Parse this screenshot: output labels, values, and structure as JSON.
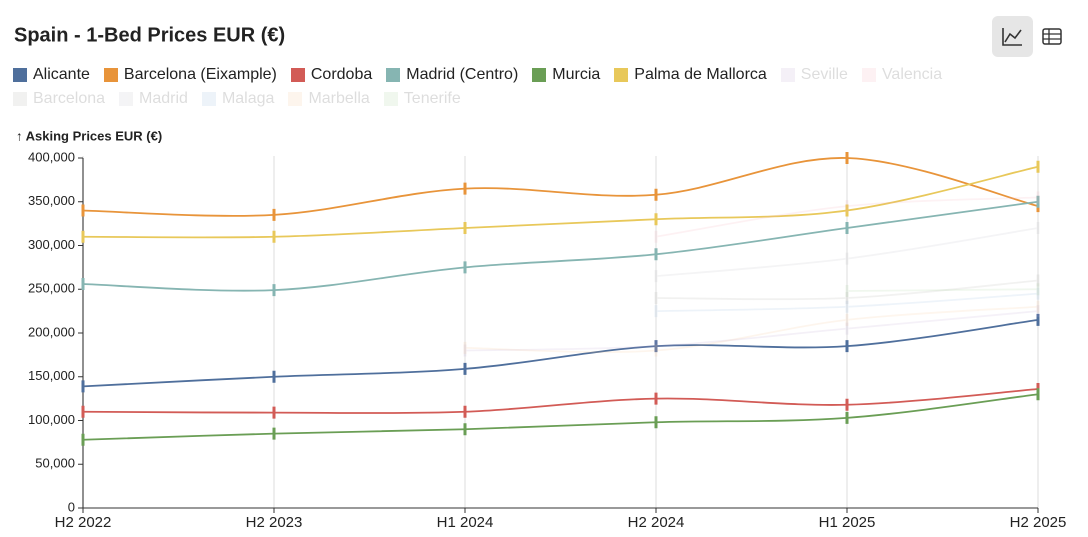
{
  "chart_data": {
    "type": "line",
    "title": "Spain - 1-Bed Prices EUR (€)",
    "y_label": "↑ Asking Prices EUR (€)",
    "categories": [
      "H2 2022",
      "H2 2023",
      "H1 2024",
      "H2 2024",
      "H1 2025",
      "H2 2025"
    ],
    "ylim": [
      0,
      400000
    ],
    "yticks": [
      0,
      {
        "value": 50000,
        "label": "50,000"
      },
      {
        "value": 100000,
        "label": "100,000"
      },
      {
        "value": 150000,
        "label": "150,000"
      },
      {
        "value": 200000,
        "label": "200,000"
      },
      {
        "value": 250000,
        "label": "250,000"
      },
      {
        "value": 300000,
        "label": "300,000"
      },
      {
        "value": 350000,
        "label": "350,000"
      },
      {
        "value": 400000,
        "label": "400,000"
      }
    ],
    "grid": true,
    "series": [
      {
        "name": "Alicante",
        "color": "#4f6f9c",
        "values": [
          139000,
          150000,
          159000,
          185000,
          185000,
          215000
        ]
      },
      {
        "name": "Barcelona (Eixample)",
        "color": "#e8943a",
        "values": [
          340000,
          335000,
          365000,
          358000,
          400000,
          345000
        ]
      },
      {
        "name": "Cordoba",
        "color": "#d25b56",
        "values": [
          110000,
          109000,
          110000,
          125000,
          118000,
          136000
        ]
      },
      {
        "name": "Madrid (Centro)",
        "color": "#86b5b2",
        "values": [
          256000,
          249000,
          275000,
          290000,
          320000,
          350000
        ]
      },
      {
        "name": "Murcia",
        "color": "#6a9e55",
        "values": [
          78000,
          85000,
          90000,
          98000,
          103000,
          130000
        ]
      },
      {
        "name": "Palma de Mallorca",
        "color": "#e8c85a",
        "values": [
          310000,
          310000,
          320000,
          330000,
          340000,
          390000
        ]
      },
      {
        "name": "Seville",
        "color": "#b9a3d1",
        "hidden": true,
        "values": [
          null,
          null,
          180000,
          185000,
          205000,
          225000
        ]
      },
      {
        "name": "Valencia",
        "color": "#f2a9b5",
        "hidden": true,
        "values": [
          null,
          null,
          null,
          310000,
          345000,
          355000
        ]
      },
      {
        "name": "Barcelona",
        "color": "#a9a9a0",
        "hidden": true,
        "values": [
          null,
          null,
          null,
          240000,
          240000,
          260000
        ]
      },
      {
        "name": "Madrid",
        "color": "#b8b8c0",
        "hidden": true,
        "values": [
          null,
          null,
          null,
          265000,
          285000,
          320000
        ]
      },
      {
        "name": "Malaga",
        "color": "#8fb4de",
        "hidden": true,
        "values": [
          null,
          null,
          null,
          225000,
          230000,
          245000
        ]
      },
      {
        "name": "Marbella",
        "color": "#f5c08f",
        "hidden": true,
        "values": [
          null,
          null,
          183000,
          180000,
          215000,
          230000
        ]
      },
      {
        "name": "Tenerife",
        "color": "#9fcf95",
        "hidden": true,
        "values": [
          null,
          null,
          null,
          null,
          248000,
          250000
        ]
      }
    ]
  }
}
